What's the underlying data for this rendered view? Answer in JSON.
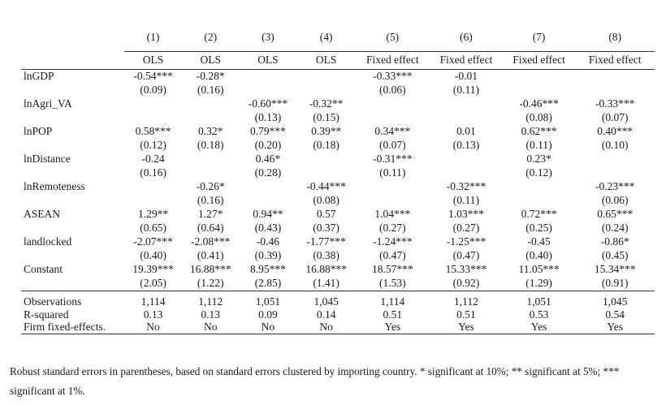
{
  "columns": {
    "numbers": [
      "(1)",
      "(2)",
      "(3)",
      "(4)",
      "(5)",
      "(6)",
      "(7)",
      "(8)"
    ],
    "methods": [
      "OLS",
      "OLS",
      "OLS",
      "OLS",
      "Fixed effect",
      "Fixed effect",
      "Fixed effect",
      "Fixed effect"
    ]
  },
  "rows": [
    {
      "label": "lnGDP",
      "coef": [
        "-0.54***",
        "-0.28*",
        "",
        "",
        "-0.33***",
        "-0.01",
        "",
        ""
      ],
      "se": [
        "(0.09)",
        "(0.16)",
        "",
        "",
        "(0.06)",
        "(0.11)",
        "",
        ""
      ]
    },
    {
      "label": "lnAgri_VA",
      "coef": [
        "",
        "",
        "-0.60***",
        "-0.32**",
        "",
        "",
        "-0.46***",
        "-0.33***"
      ],
      "se": [
        "",
        "",
        "(0.13)",
        "(0.15)",
        "",
        "",
        "(0.08)",
        "(0.07)"
      ]
    },
    {
      "label": "lnPOP",
      "coef": [
        "0.58***",
        "0.32*",
        "0.79***",
        "0.39**",
        "0.34***",
        "0.01",
        "0.62***",
        "0.40***"
      ],
      "se": [
        "(0.12)",
        "(0.18)",
        "(0.20)",
        "(0.18)",
        "(0.07)",
        "(0.13)",
        "(0.11)",
        "(0.10)"
      ]
    },
    {
      "label": "lnDistance",
      "coef": [
        "-0.24",
        "",
        "0.46*",
        "",
        "-0.31***",
        "",
        "0.23*",
        ""
      ],
      "se": [
        "(0.16)",
        "",
        "(0.28)",
        "",
        "(0.11)",
        "",
        "(0.12)",
        ""
      ]
    },
    {
      "label": "lnRemoteness",
      "coef": [
        "",
        "-0.26*",
        "",
        "-0.44***",
        "",
        "-0.32***",
        "",
        "-0.23***"
      ],
      "se": [
        "",
        "(0.16)",
        "",
        "(0.08)",
        "",
        "(0.11)",
        "",
        "(0.06)"
      ]
    },
    {
      "label": "ASEAN",
      "coef": [
        "1.29**",
        "1.27*",
        "0.94**",
        "0.57",
        "1.04***",
        "1.03***",
        "0.72***",
        "0.65***"
      ],
      "se": [
        "(0.65)",
        "(0.64)",
        "(0.43)",
        "(0.37)",
        "(0.27)",
        "(0.27)",
        "(0.25)",
        "(0.24)"
      ]
    },
    {
      "label": "landlocked",
      "coef": [
        "-2.07***",
        "-2.08***",
        "-0.46",
        "-1.77***",
        "-1.24***",
        "-1.25***",
        "-0.45",
        "-0.86*"
      ],
      "se": [
        "(0.40)",
        "(0.41)",
        "(0.39)",
        "(0.38)",
        "(0.47)",
        "(0.47)",
        "(0.40)",
        "(0.45)"
      ]
    },
    {
      "label": "Constant",
      "coef": [
        "19.39***",
        "16.88***",
        "8.95***",
        "16.88***",
        "18.57***",
        "15.33***",
        "11.05***",
        "15.34***"
      ],
      "se": [
        "(2.05)",
        "(1.22)",
        "(2.85)",
        "(1.41)",
        "(1.53)",
        "(0.92)",
        "(1.29)",
        "(0.91)"
      ]
    }
  ],
  "stats": [
    {
      "label": "Observations",
      "values": [
        "1,114",
        "1,112",
        "1,051",
        "1,045",
        "1,114",
        "1,112",
        "1,051",
        "1,045"
      ]
    },
    {
      "label": "R-squared",
      "values": [
        "0.13",
        "0.13",
        "0.09",
        "0.14",
        "0.51",
        "0.51",
        "0.53",
        "0.54"
      ]
    },
    {
      "label": "Firm fixed-effects.",
      "values": [
        "No",
        "No",
        "No",
        "No",
        "Yes",
        "Yes",
        "Yes",
        "Yes"
      ]
    }
  ],
  "note": "Robust standard errors in parentheses, based on standard errors clustered by importing country. * significant at 10%; ** significant at 5%; *** significant at 1%."
}
